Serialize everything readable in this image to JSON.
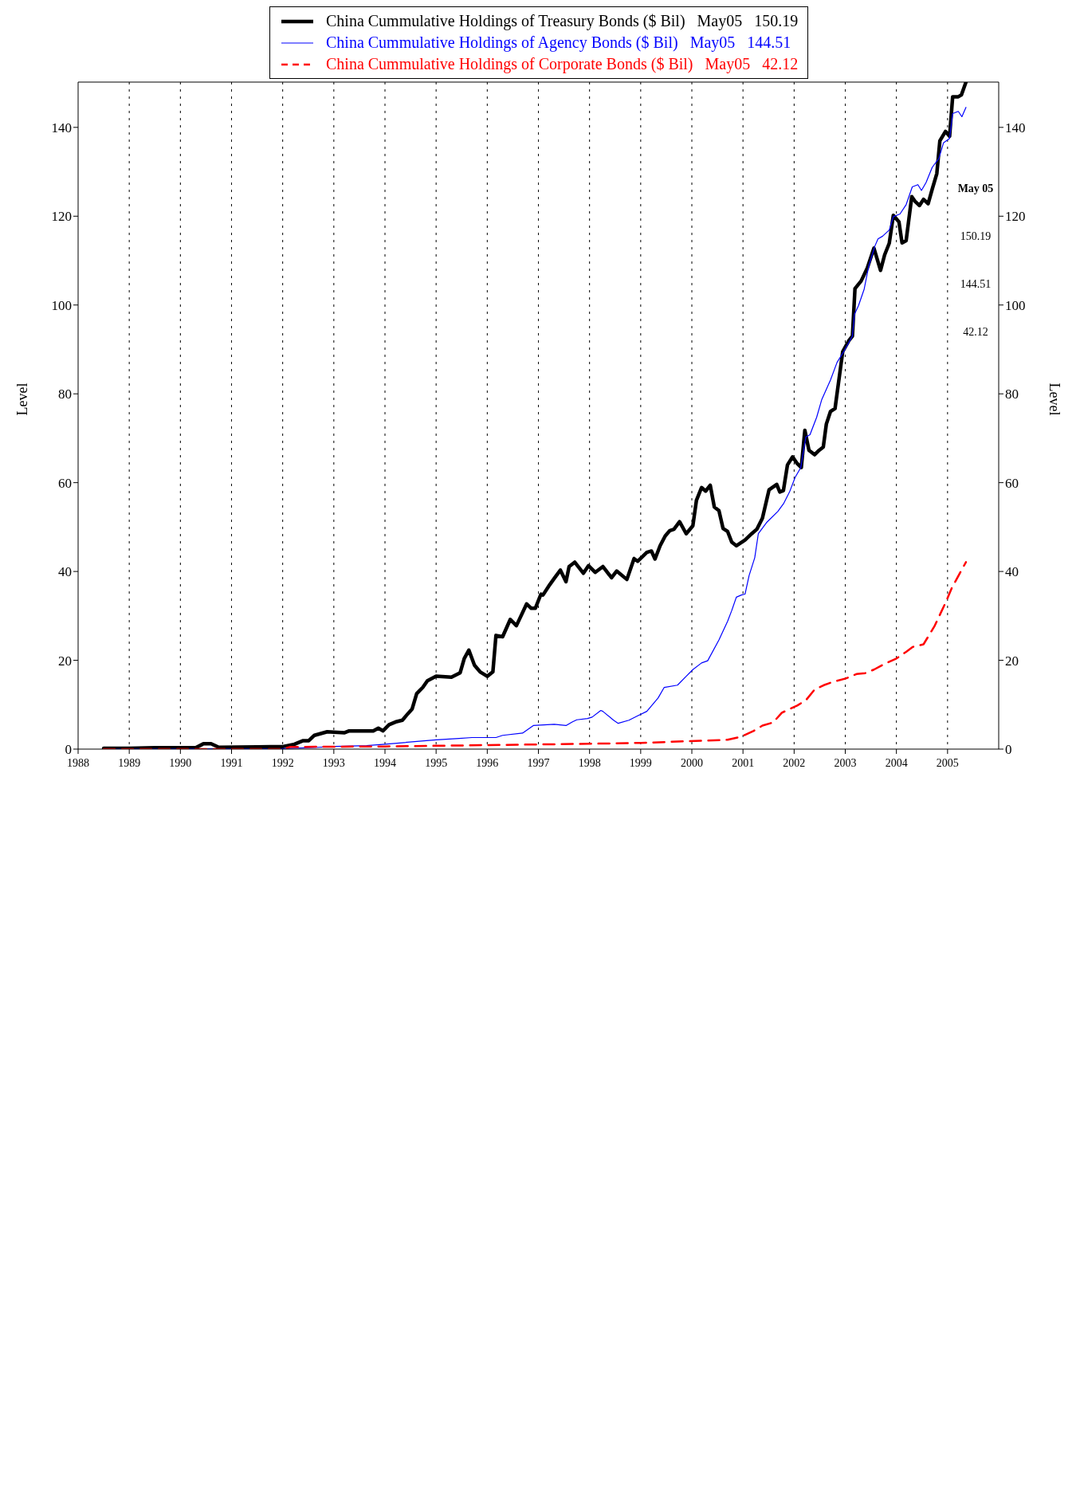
{
  "chart_data": {
    "type": "line",
    "ylabel": "Level",
    "y2label": "Level",
    "xlim": [
      1988,
      2006
    ],
    "xticks": [
      1988,
      1989,
      1990,
      1991,
      1992,
      1993,
      1994,
      1995,
      1996,
      1997,
      1998,
      1999,
      2000,
      2001,
      2002,
      2003,
      2004,
      2005
    ],
    "ylim": [
      0,
      150.2
    ],
    "yticks": [
      0,
      20,
      40,
      60,
      80,
      100,
      120,
      140
    ],
    "y2lim": [
      0,
      150.2
    ],
    "y2ticks": [
      0,
      20,
      40,
      60,
      80,
      100,
      120,
      140
    ],
    "grid": "x",
    "legend": "top",
    "annotations": [
      "May 05",
      "150.19",
      "144.51",
      "42.12"
    ],
    "series": [
      {
        "name": "China Cummulative Holdings of Treasury Bonds ($ Bil)   May05   150.19",
        "color": "#000000",
        "line_style": "solid",
        "x": [
          1988.5,
          1989.0,
          1989.5,
          1990.3,
          1990.45,
          1990.6,
          1990.75,
          1991.5,
          1992.02,
          1992.23,
          1992.4,
          1992.51,
          1992.62,
          1992.87,
          1993.21,
          1993.3,
          1993.77,
          1993.87,
          1993.96,
          1994.08,
          1994.23,
          1994.34,
          1994.45,
          1994.53,
          1994.62,
          1994.74,
          1994.83,
          1995.0,
          1995.3,
          1995.47,
          1995.55,
          1995.64,
          1995.75,
          1995.86,
          1996.0,
          1996.11,
          1996.17,
          1996.3,
          1996.45,
          1996.57,
          1996.77,
          1996.86,
          1996.94,
          1997.05,
          1997.09,
          1997.22,
          1997.32,
          1997.43,
          1997.54,
          1997.6,
          1997.71,
          1997.88,
          1997.98,
          1998.11,
          1998.26,
          1998.43,
          1998.53,
          1998.73,
          1998.87,
          1998.94,
          1999.12,
          1999.21,
          1999.28,
          1999.38,
          1999.48,
          1999.57,
          1999.65,
          1999.76,
          1999.89,
          2000.02,
          2000.09,
          2000.19,
          2000.27,
          2000.36,
          2000.44,
          2000.53,
          2000.61,
          2000.7,
          2000.78,
          2000.87,
          2001.04,
          2001.17,
          2001.27,
          2001.38,
          2001.51,
          2001.66,
          2001.72,
          2001.79,
          2001.87,
          2001.97,
          2002.06,
          2002.14,
          2002.21,
          2002.29,
          2002.4,
          2002.49,
          2002.57,
          2002.63,
          2002.71,
          2002.8,
          2002.95,
          2003.07,
          2003.14,
          2003.19,
          2003.31,
          2003.43,
          2003.56,
          2003.69,
          2003.77,
          2003.86,
          2003.94,
          2004.05,
          2004.11,
          2004.19,
          2004.3,
          2004.36,
          2004.45,
          2004.53,
          2004.62,
          2004.7,
          2004.79,
          2004.85,
          2004.96,
          2005.04,
          2005.1,
          2005.21,
          2005.27,
          2005.36
        ],
        "values": [
          0.2,
          0.2,
          0.3,
          0.3,
          1.2,
          1.2,
          0.4,
          0.5,
          0.6,
          1.1,
          1.9,
          1.9,
          3.1,
          3.9,
          3.7,
          4.1,
          4.1,
          4.7,
          4.1,
          5.5,
          6.2,
          6.5,
          8.0,
          9.0,
          12.5,
          13.9,
          15.4,
          16.4,
          16.2,
          17.2,
          20.4,
          22.3,
          18.9,
          17.4,
          16.4,
          17.4,
          25.6,
          25.3,
          29.2,
          27.8,
          32.7,
          31.7,
          31.7,
          34.9,
          34.7,
          37.0,
          38.6,
          40.3,
          37.7,
          41.1,
          42.1,
          39.6,
          41.3,
          39.8,
          41.1,
          38.6,
          40.1,
          38.2,
          42.9,
          42.3,
          44.3,
          44.6,
          42.8,
          45.8,
          48.0,
          49.2,
          49.5,
          51.2,
          48.5,
          50.3,
          56.0,
          58.9,
          58.1,
          59.4,
          54.5,
          53.7,
          49.7,
          49.0,
          46.6,
          45.8,
          47.1,
          48.5,
          49.5,
          52.0,
          58.4,
          59.6,
          57.9,
          58.2,
          64.0,
          65.8,
          64.3,
          63.4,
          71.8,
          67.3,
          66.3,
          67.3,
          68.0,
          73.2,
          76.0,
          76.7,
          89.5,
          92.0,
          93.0,
          103.7,
          105.4,
          108.3,
          112.8,
          107.8,
          111.3,
          113.9,
          120.2,
          118.7,
          114.0,
          114.5,
          124.4,
          123.4,
          122.4,
          123.8,
          122.8,
          126.1,
          129.6,
          137.0,
          139.1,
          138.0,
          146.9,
          146.9,
          147.3,
          150.19
        ]
      },
      {
        "name": "China Cummulative Holdings of Agency Bonds ($ Bil)   May05   144.51",
        "color": "#0000ff",
        "line_style": "solid",
        "x": [
          1988.5,
          1992.0,
          1992.7,
          1993.04,
          1993.64,
          1994.0,
          1995.0,
          1995.45,
          1995.7,
          1996.17,
          1996.3,
          1996.69,
          1996.9,
          1997.31,
          1997.54,
          1997.66,
          1997.75,
          1997.96,
          1998.05,
          1998.22,
          1998.26,
          1998.47,
          1998.56,
          1998.77,
          1998.94,
          1999.12,
          1999.34,
          1999.46,
          1999.72,
          1999.89,
          2000.02,
          2000.19,
          2000.31,
          2000.53,
          2000.7,
          2000.78,
          2000.87,
          2000.97,
          2001.04,
          2001.12,
          2001.23,
          2001.3,
          2001.46,
          2001.68,
          2001.8,
          2001.91,
          2002.02,
          2002.13,
          2002.23,
          2002.31,
          2002.44,
          2002.54,
          2002.71,
          2002.84,
          2002.97,
          2003.14,
          2003.18,
          2003.26,
          2003.37,
          2003.46,
          2003.58,
          2003.64,
          2003.73,
          2003.86,
          2003.94,
          2004.07,
          2004.19,
          2004.31,
          2004.42,
          2004.49,
          2004.58,
          2004.7,
          2004.83,
          2004.92,
          2005.04,
          2005.1,
          2005.21,
          2005.28,
          2005.36
        ],
        "values": [
          0,
          0.1,
          0.4,
          0.6,
          0.8,
          1.1,
          2.1,
          2.4,
          2.6,
          2.6,
          3.1,
          3.6,
          5.3,
          5.6,
          5.3,
          6.1,
          6.6,
          6.9,
          7.2,
          8.7,
          8.5,
          6.5,
          5.8,
          6.5,
          7.5,
          8.5,
          11.5,
          13.9,
          14.4,
          16.4,
          17.9,
          19.4,
          19.9,
          24.6,
          28.8,
          31.2,
          34.2,
          34.7,
          34.9,
          39.1,
          43.1,
          48.5,
          51.0,
          53.5,
          55.4,
          57.9,
          61.2,
          63.4,
          70.3,
          70.8,
          74.7,
          78.7,
          83.1,
          87.1,
          89.5,
          93.0,
          97.9,
          99.9,
          103.6,
          108.8,
          113.3,
          114.9,
          115.5,
          116.9,
          119.9,
          120.5,
          122.6,
          126.6,
          127.1,
          125.8,
          127.6,
          131.0,
          133.0,
          136.5,
          137.5,
          143.1,
          143.6,
          142.4,
          144.51
        ]
      },
      {
        "name": "China Cummulative Holdings of Corporate Bonds ($ Bil)   May05   42.12",
        "color": "#ff0000",
        "line_style": "dashed",
        "x": [
          1988.5,
          1992.0,
          1992.15,
          1994.0,
          1996.0,
          1998.0,
          1999.0,
          2000.7,
          2000.96,
          2001.21,
          2001.38,
          2001.59,
          2001.76,
          2002.06,
          2002.23,
          2002.4,
          2002.58,
          2002.75,
          2003.01,
          2003.22,
          2003.39,
          2003.56,
          2003.77,
          2004.0,
          2004.19,
          2004.32,
          2004.53,
          2004.75,
          2004.97,
          2005.08,
          2005.25,
          2005.36
        ],
        "values": [
          0,
          0,
          0.5,
          0.6,
          0.9,
          1.2,
          1.4,
          2.1,
          2.8,
          4.1,
          5.3,
          6.0,
          8.2,
          9.8,
          11.0,
          13.4,
          14.4,
          15.1,
          15.9,
          16.9,
          17.1,
          17.9,
          19.2,
          20.4,
          21.9,
          23.0,
          23.6,
          27.8,
          33.2,
          36.2,
          39.8,
          42.12
        ]
      }
    ]
  }
}
